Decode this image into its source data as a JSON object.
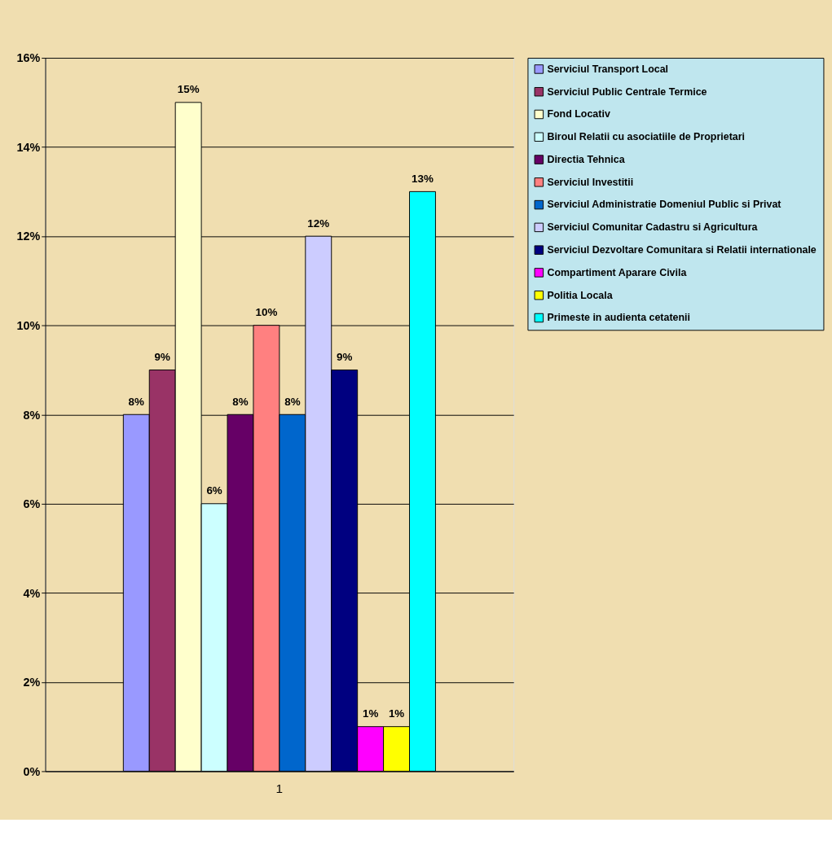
{
  "chart_data": {
    "type": "bar",
    "categories": [
      "1"
    ],
    "series": [
      {
        "name": "Serviciul Transport Local",
        "color": "#9999ff",
        "values": [
          8
        ],
        "value_labels": [
          "8%"
        ]
      },
      {
        "name": "Serviciul Public Centrale Termice",
        "color": "#993366",
        "values": [
          9
        ],
        "value_labels": [
          "9%"
        ]
      },
      {
        "name": "Fond Locativ",
        "color": "#ffffcc",
        "values": [
          15
        ],
        "value_labels": [
          "15%"
        ]
      },
      {
        "name": "Biroul Relatii cu asociatiile de Proprietari",
        "color": "#ccffff",
        "values": [
          6
        ],
        "value_labels": [
          "6%"
        ]
      },
      {
        "name": "Directia Tehnica",
        "color": "#660066",
        "values": [
          8
        ],
        "value_labels": [
          "8%"
        ]
      },
      {
        "name": "Serviciul Investitii",
        "color": "#ff8080",
        "values": [
          10
        ],
        "value_labels": [
          "10%"
        ]
      },
      {
        "name": "Serviciul Administratie Domeniul Public si Privat",
        "color": "#0066cc",
        "values": [
          8
        ],
        "value_labels": [
          "8%"
        ]
      },
      {
        "name": "Serviciul Comunitar Cadastru si Agricultura",
        "color": "#ccccff",
        "values": [
          12
        ],
        "value_labels": [
          "12%"
        ]
      },
      {
        "name": "Serviciul Dezvoltare Comunitara si Relatii internationale",
        "color": "#000080",
        "values": [
          9
        ],
        "value_labels": [
          "9%"
        ]
      },
      {
        "name": "Compartiment Aparare Civila",
        "color": "#ff00ff",
        "values": [
          1
        ],
        "value_labels": [
          "1%"
        ]
      },
      {
        "name": "Politia Locala",
        "color": "#ffff00",
        "values": [
          1
        ],
        "value_labels": [
          "1%"
        ]
      },
      {
        "name": "Primeste in audienta cetatenii",
        "color": "#00ffff",
        "values": [
          13
        ],
        "value_labels": [
          "13%"
        ]
      }
    ],
    "ylim": [
      0,
      16
    ],
    "yticks": [
      {
        "value": 0,
        "label": "0%"
      },
      {
        "value": 2,
        "label": "2%"
      },
      {
        "value": 4,
        "label": "4%"
      },
      {
        "value": 6,
        "label": "6%"
      },
      {
        "value": 8,
        "label": "8%"
      },
      {
        "value": 10,
        "label": "10%"
      },
      {
        "value": 12,
        "label": "12%"
      },
      {
        "value": 14,
        "label": "14%"
      },
      {
        "value": 16,
        "label": "16%"
      }
    ],
    "grid": "y",
    "legend": "right"
  }
}
